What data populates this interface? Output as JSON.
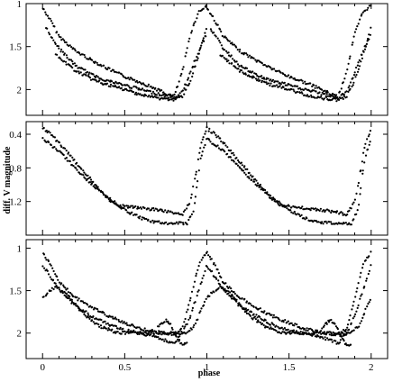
{
  "chart_data": {
    "type": "scatter",
    "xlabel": "phase",
    "ylabel": "diff. V magnitude",
    "xticks": [
      "0",
      "0.5",
      "1",
      "1.5",
      "2"
    ],
    "x_range": [
      -0.1,
      2.1
    ],
    "grid": false,
    "y_inverted": true,
    "panels": [
      {
        "name": "top",
        "ylim": [
          1.0,
          2.3
        ],
        "yticks": [
          "1",
          "1.5",
          "2"
        ],
        "series": [
          {
            "points": [
              [
                0.0,
                1.05
              ],
              [
                0.05,
                1.2
              ],
              [
                0.1,
                1.38
              ],
              [
                0.2,
                1.55
              ],
              [
                0.3,
                1.66
              ],
              [
                0.4,
                1.76
              ],
              [
                0.5,
                1.85
              ],
              [
                0.6,
                1.92
              ],
              [
                0.7,
                2.0
              ],
              [
                0.75,
                2.05
              ],
              [
                0.8,
                2.08
              ],
              [
                0.85,
                1.8
              ],
              [
                0.9,
                1.35
              ],
              [
                0.95,
                1.1
              ],
              [
                1.0,
                1.02
              ]
            ]
          },
          {
            "points": [
              [
                0.02,
                1.28
              ],
              [
                0.1,
                1.52
              ],
              [
                0.2,
                1.72
              ],
              [
                0.3,
                1.83
              ],
              [
                0.4,
                1.9
              ],
              [
                0.5,
                1.95
              ],
              [
                0.6,
                2.0
              ],
              [
                0.7,
                2.05
              ],
              [
                0.8,
                2.1
              ],
              [
                0.85,
                2.03
              ],
              [
                0.9,
                1.8
              ],
              [
                0.95,
                1.55
              ],
              [
                1.0,
                1.35
              ]
            ]
          },
          {
            "points": [
              [
                0.08,
                1.6
              ],
              [
                0.2,
                1.78
              ],
              [
                0.3,
                1.88
              ],
              [
                0.4,
                1.95
              ],
              [
                0.5,
                2.0
              ],
              [
                0.6,
                2.06
              ],
              [
                0.7,
                2.1
              ],
              [
                0.8,
                2.12
              ],
              [
                0.85,
                2.08
              ],
              [
                0.9,
                1.9
              ],
              [
                0.95,
                1.6
              ],
              [
                1.0,
                1.28
              ]
            ]
          }
        ]
      },
      {
        "name": "middle",
        "ylim": [
          0.25,
          1.6
        ],
        "yticks": [
          "0.4",
          "0.8",
          "1.2"
        ],
        "series": [
          {
            "points": [
              [
                0.0,
                0.33
              ],
              [
                0.05,
                0.4
              ],
              [
                0.1,
                0.5
              ],
              [
                0.2,
                0.73
              ],
              [
                0.3,
                0.95
              ],
              [
                0.4,
                1.18
              ],
              [
                0.45,
                1.24
              ],
              [
                0.5,
                1.26
              ],
              [
                0.6,
                1.28
              ],
              [
                0.7,
                1.3
              ],
              [
                0.8,
                1.33
              ],
              [
                0.85,
                1.36
              ],
              [
                0.9,
                1.2
              ],
              [
                0.93,
                0.9
              ],
              [
                0.96,
                0.55
              ],
              [
                1.0,
                0.33
              ]
            ]
          },
          {
            "points": [
              [
                0.0,
                0.45
              ],
              [
                0.1,
                0.6
              ],
              [
                0.2,
                0.8
              ],
              [
                0.3,
                1.0
              ],
              [
                0.4,
                1.15
              ],
              [
                0.5,
                1.3
              ],
              [
                0.6,
                1.4
              ],
              [
                0.7,
                1.45
              ],
              [
                0.8,
                1.46
              ],
              [
                0.88,
                1.46
              ],
              [
                0.92,
                1.3
              ],
              [
                0.96,
                0.7
              ],
              [
                1.0,
                0.45
              ]
            ]
          }
        ]
      },
      {
        "name": "bottom",
        "ylim": [
          0.9,
          2.3
        ],
        "yticks": [
          "1",
          "1.5",
          "2"
        ],
        "series": [
          {
            "points": [
              [
                0.0,
                1.05
              ],
              [
                0.05,
                1.2
              ],
              [
                0.1,
                1.4
              ],
              [
                0.2,
                1.58
              ],
              [
                0.3,
                1.7
              ],
              [
                0.4,
                1.8
              ],
              [
                0.5,
                1.88
              ],
              [
                0.6,
                1.95
              ],
              [
                0.7,
                1.99
              ],
              [
                0.8,
                2.02
              ],
              [
                0.85,
                1.95
              ],
              [
                0.9,
                1.6
              ],
              [
                0.95,
                1.2
              ],
              [
                1.0,
                1.05
              ]
            ]
          },
          {
            "points": [
              [
                0.0,
                1.2
              ],
              [
                0.1,
                1.48
              ],
              [
                0.2,
                1.68
              ],
              [
                0.3,
                1.8
              ],
              [
                0.4,
                1.9
              ],
              [
                0.5,
                1.97
              ],
              [
                0.6,
                2.0
              ],
              [
                0.7,
                2.05
              ],
              [
                0.8,
                2.12
              ],
              [
                0.85,
                2.0
              ],
              [
                0.9,
                1.8
              ],
              [
                0.95,
                1.5
              ],
              [
                1.0,
                1.2
              ]
            ]
          },
          {
            "points": [
              [
                0.0,
                1.58
              ],
              [
                0.08,
                1.45
              ],
              [
                0.15,
                1.55
              ],
              [
                0.25,
                1.78
              ],
              [
                0.35,
                1.92
              ],
              [
                0.45,
                1.99
              ],
              [
                0.55,
                2.0
              ],
              [
                0.65,
                2.0
              ],
              [
                0.75,
                2.0
              ],
              [
                0.8,
                2.0
              ],
              [
                0.88,
                2.0
              ],
              [
                0.93,
                1.9
              ],
              [
                0.97,
                1.7
              ],
              [
                1.0,
                1.6
              ]
            ]
          },
          {
            "points": [
              [
                0.7,
                1.93
              ],
              [
                0.75,
                1.85
              ],
              [
                0.78,
                1.9
              ],
              [
                0.82,
                2.05
              ],
              [
                0.85,
                2.15
              ],
              [
                0.88,
                2.12
              ]
            ]
          }
        ]
      }
    ]
  }
}
